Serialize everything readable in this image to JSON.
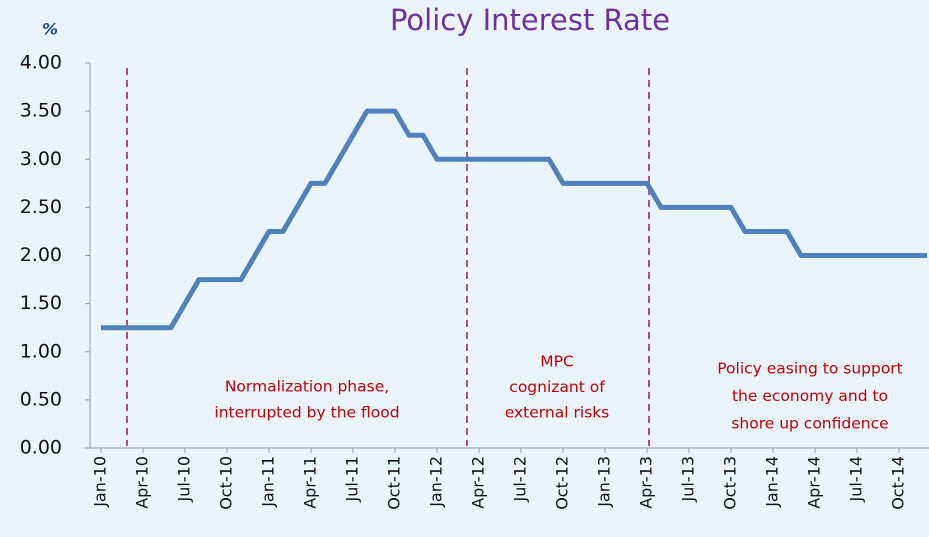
{
  "chart_data": {
    "type": "line",
    "title": "Policy Interest Rate",
    "ylabel": "%",
    "categories": [
      "Jan-10",
      null,
      null,
      "Apr-10",
      null,
      null,
      "Jul-10",
      null,
      null,
      "Oct-10",
      null,
      null,
      "Jan-11",
      null,
      null,
      "Apr-11",
      null,
      null,
      "Jul-11",
      null,
      null,
      "Oct-11",
      null,
      null,
      "Jan-12",
      null,
      null,
      "Apr-12",
      null,
      null,
      "Jul-12",
      null,
      null,
      "Oct-12",
      null,
      null,
      "Jan-13",
      null,
      null,
      "Apr-13",
      null,
      null,
      "Jul-13",
      null,
      null,
      "Oct-13",
      null,
      null,
      "Jan-14",
      null,
      null,
      "Apr-14",
      null,
      null,
      "Jul-14",
      null,
      null,
      "Oct-14",
      null,
      null
    ],
    "values": [
      1.25,
      1.25,
      1.25,
      1.25,
      1.25,
      1.25,
      1.5,
      1.75,
      1.75,
      1.75,
      1.75,
      2.0,
      2.25,
      2.25,
      2.5,
      2.75,
      2.75,
      3.0,
      3.25,
      3.5,
      3.5,
      3.5,
      3.25,
      3.25,
      3.0,
      3.0,
      3.0,
      3.0,
      3.0,
      3.0,
      3.0,
      3.0,
      3.0,
      2.75,
      2.75,
      2.75,
      2.75,
      2.75,
      2.75,
      2.75,
      2.5,
      2.5,
      2.5,
      2.5,
      2.5,
      2.5,
      2.25,
      2.25,
      2.25,
      2.25,
      2.0,
      2.0,
      2.0,
      2.0,
      2.0,
      2.0,
      2.0,
      2.0,
      2.0,
      2.0
    ],
    "color": "#4f81bd",
    "ylim": [
      0,
      4
    ],
    "yticks": [
      {
        "value": 0,
        "label": "0.00"
      },
      {
        "value": 0.5,
        "label": "0.50"
      },
      {
        "value": 1,
        "label": "1.00"
      },
      {
        "value": 1.5,
        "label": "1.50"
      },
      {
        "value": 2,
        "label": "2.00"
      },
      {
        "value": 2.5,
        "label": "2.50"
      },
      {
        "value": 3,
        "label": "3.00"
      },
      {
        "value": 3.5,
        "label": "3.50"
      },
      {
        "value": 4,
        "label": "4.00"
      }
    ],
    "annotations": [
      [
        "Normalization phase,",
        "interrupted by the flood"
      ],
      [
        "MPC",
        "cognizant of",
        "external risks"
      ],
      [
        "Policy easing to support",
        "the economy and to",
        "shore up confidence"
      ]
    ]
  }
}
